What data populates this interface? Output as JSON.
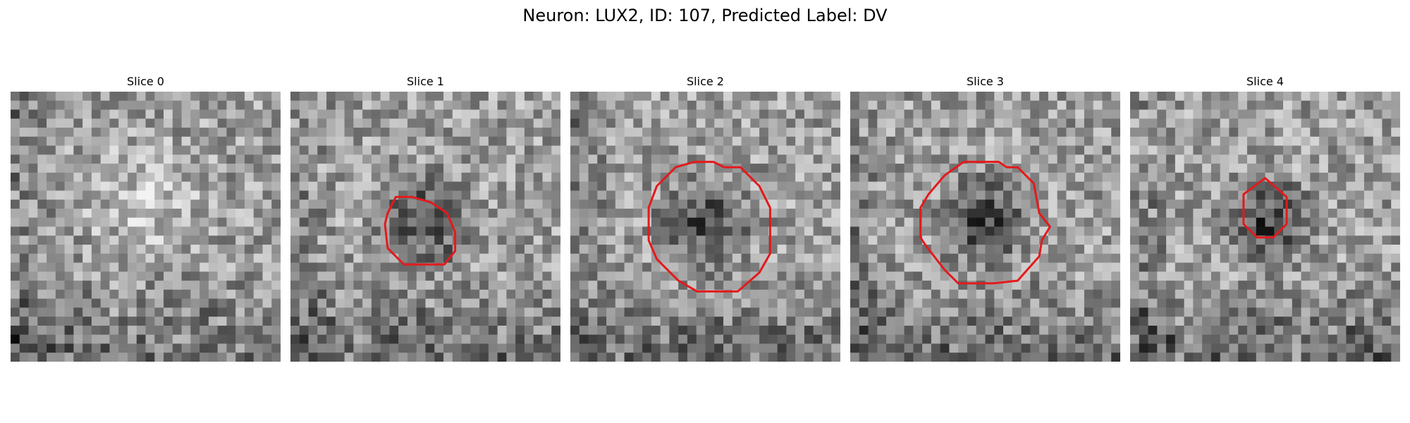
{
  "figure": {
    "title": "Neuron: LUX2, ID: 107, Predicted Label: DV",
    "contour_color": "#e31a1c"
  },
  "panels": [
    {
      "label": "Slice 0",
      "seed": 11,
      "dark_center": false,
      "contour": null
    },
    {
      "label": "Slice 1",
      "seed": 23,
      "dark_center": true,
      "contour": [
        [
          0.39,
          0.39
        ],
        [
          0.45,
          0.39
        ],
        [
          0.52,
          0.41
        ],
        [
          0.58,
          0.45
        ],
        [
          0.61,
          0.52
        ],
        [
          0.61,
          0.59
        ],
        [
          0.57,
          0.64
        ],
        [
          0.49,
          0.64
        ],
        [
          0.42,
          0.64
        ],
        [
          0.36,
          0.58
        ],
        [
          0.35,
          0.49
        ],
        [
          0.36,
          0.45
        ]
      ]
    },
    {
      "label": "Slice 2",
      "seed": 37,
      "dark_center": true,
      "contour": [
        [
          0.46,
          0.26
        ],
        [
          0.53,
          0.26
        ],
        [
          0.57,
          0.28
        ],
        [
          0.63,
          0.28
        ],
        [
          0.7,
          0.35
        ],
        [
          0.74,
          0.43
        ],
        [
          0.74,
          0.6
        ],
        [
          0.7,
          0.67
        ],
        [
          0.62,
          0.74
        ],
        [
          0.56,
          0.74
        ],
        [
          0.47,
          0.74
        ],
        [
          0.4,
          0.7
        ],
        [
          0.32,
          0.62
        ],
        [
          0.29,
          0.55
        ],
        [
          0.29,
          0.43
        ],
        [
          0.32,
          0.35
        ],
        [
          0.36,
          0.31
        ],
        [
          0.39,
          0.28
        ]
      ]
    },
    {
      "label": "Slice 3",
      "seed": 49,
      "dark_center": true,
      "contour": [
        [
          0.42,
          0.26
        ],
        [
          0.55,
          0.26
        ],
        [
          0.58,
          0.28
        ],
        [
          0.62,
          0.28
        ],
        [
          0.68,
          0.34
        ],
        [
          0.7,
          0.45
        ],
        [
          0.74,
          0.5
        ],
        [
          0.71,
          0.55
        ],
        [
          0.7,
          0.61
        ],
        [
          0.62,
          0.7
        ],
        [
          0.53,
          0.71
        ],
        [
          0.4,
          0.71
        ],
        [
          0.35,
          0.66
        ],
        [
          0.28,
          0.57
        ],
        [
          0.26,
          0.54
        ],
        [
          0.26,
          0.43
        ],
        [
          0.29,
          0.38
        ],
        [
          0.35,
          0.31
        ]
      ]
    },
    {
      "label": "Slice 4",
      "seed": 61,
      "dark_center": true,
      "contour": [
        [
          0.5,
          0.32
        ],
        [
          0.58,
          0.39
        ],
        [
          0.58,
          0.49
        ],
        [
          0.53,
          0.54
        ],
        [
          0.47,
          0.54
        ],
        [
          0.42,
          0.49
        ],
        [
          0.42,
          0.38
        ]
      ]
    }
  ]
}
